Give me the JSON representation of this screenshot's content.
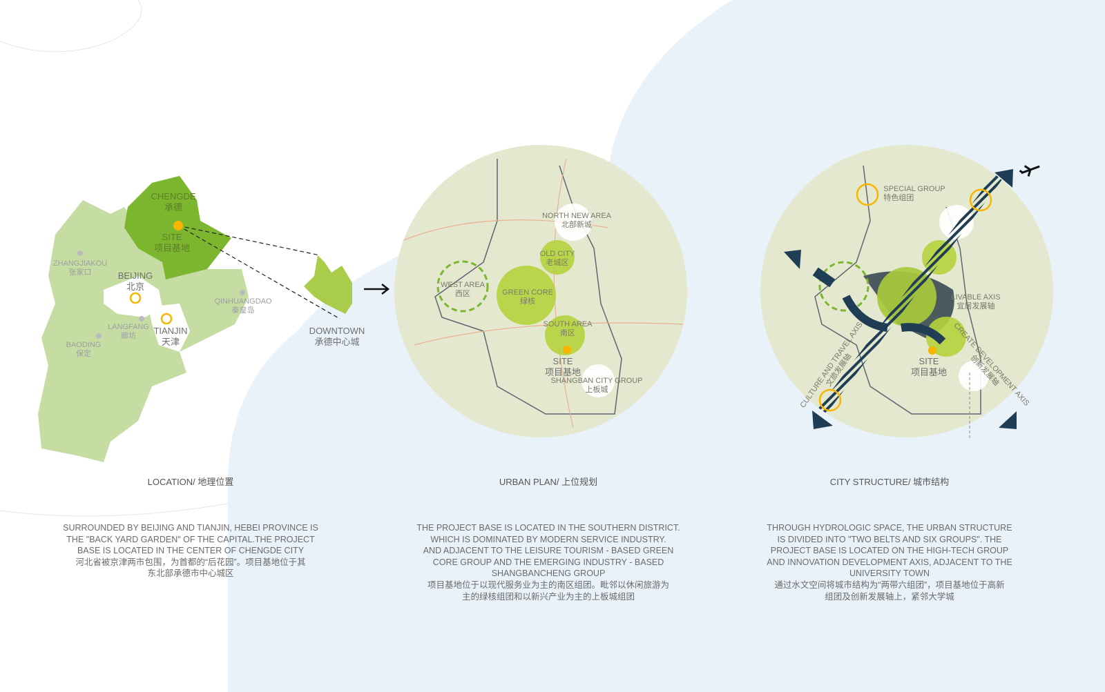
{
  "colors": {
    "sea": "#eaf2f9",
    "land": "#ffffff",
    "hebei": "#c5dda2",
    "chengde": "#7cb52e",
    "downtown": "#a9cc4a",
    "site": "#f7b500",
    "green_circle": "#b5d33c",
    "structure_navy": "#1f3e56"
  },
  "location": {
    "labels": {
      "chengde": "CHENGDE",
      "chengde_cn": "承德",
      "site": "SITE",
      "site_cn": "项目基地",
      "zhangjiakou": "ZHANGJIAKOU",
      "zhangjiakou_cn": "张家口",
      "beijing": "BEIJING",
      "beijing_cn": "北京",
      "tianjin": "TIANJIN",
      "tianjin_cn": "天津",
      "langfang": "LANGFANG",
      "langfang_cn": "廊坊",
      "baoding": "BAODING",
      "baoding_cn": "保定",
      "qinhuangdao": "QINHUANGDAO",
      "qinhuangdao_cn": "秦皇岛",
      "downtown": "DOWNTOWN",
      "downtown_cn": "承德中心城"
    },
    "caption": "LOCATION/ 地理位置",
    "description": [
      "SURROUNDED BY BEIJING AND TIANJIN, HEBEI PROVINCE IS",
      "THE \"BACK YARD GARDEN\" OF THE CAPITAL.THE PROJECT",
      "BASE IS LOCATED IN THE CENTER OF CHENGDE CITY",
      "河北省被京津两市包围，为首都的“后花园”。项目基地位于其",
      "东北部承德市中心城区"
    ]
  },
  "urban_plan": {
    "labels": {
      "north_new_area": "NORTH NEW AREA",
      "north_new_area_cn": "北部新城",
      "old_city": "OLD CITY",
      "old_city_cn": "老城区",
      "west_area": "WEST AREA",
      "west_area_cn": "西区",
      "green_core": "GREEN CORE",
      "green_core_cn": "绿核",
      "south_area": "SOUTH AREA",
      "south_area_cn": "南区",
      "site": "SITE",
      "site_cn": "项目基地",
      "shangban": "SHANGBAN CITY GROUP",
      "shangban_cn": "上板城"
    },
    "caption": "URBAN PLAN/ 上位规划",
    "description": [
      "THE PROJECT BASE IS LOCATED IN THE SOUTHERN DISTRICT.",
      "WHICH IS DOMINATED BY MODERN SERVICE INDUSTRY.",
      "AND ADJACENT TO THE LEISURE TOURISM - BASED GREEN",
      "CORE GROUP AND THE EMERGING INDUSTRY - BASED",
      "SHANGBANCHENG GROUP",
      "项目基地位于以现代服务业为主的南区组团。毗邻以休闲旅游为",
      "主的绿核组团和以新兴产业为主的上板城组团"
    ]
  },
  "city_structure": {
    "labels": {
      "special_group": "SPECIAL GROUP",
      "special_group_cn": "特色组团",
      "livable_axis": "LIVABLE AXIS",
      "livable_axis_cn": "宜居发展轴",
      "culture_axis": "CULTURE AND TRAVEL AXIS",
      "culture_axis_cn": "文旅发展轴",
      "create_axis": "CREATE DEVELOPMENT AXIS",
      "create_axis_cn": "创新发展轴",
      "site": "SITE",
      "site_cn": "项目基地"
    },
    "icons": [
      "airplane-icon",
      "arrow-icon"
    ],
    "caption": "CITY STRUCTURE/ 城市结构",
    "description": [
      "THROUGH HYDROLOGIC SPACE, THE URBAN STRUCTURE",
      "IS DIVIDED INTO \"TWO BELTS AND SIX GROUPS\". THE",
      "PROJECT BASE IS LOCATED ON THE HIGH-TECH GROUP",
      "AND INNOVATION DEVELOPMENT AXIS, ADJACENT TO THE",
      "UNIVERSITY TOWN",
      "通过水文空间将城市结构为“两带六组团”，项目基地位于高新",
      "组团及创新发展轴上，紧邻大学城"
    ]
  }
}
